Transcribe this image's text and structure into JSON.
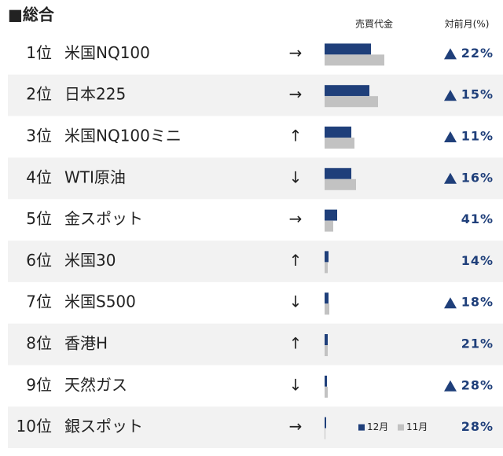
{
  "header": {
    "title": "■総合",
    "col_volume": "売買代金",
    "col_change": "対前月(%)"
  },
  "legend": {
    "dec": "12月",
    "nov": "11月",
    "dec_color": "#1f3f7a",
    "nov_color": "#c2c2c2"
  },
  "rows": [
    {
      "rank": "1位",
      "name": "米国NQ100",
      "trend": "→",
      "dec": 59,
      "nov": 76,
      "change": "22%",
      "up": true
    },
    {
      "rank": "2位",
      "name": "日本225",
      "trend": "→",
      "dec": 57,
      "nov": 68,
      "change": "15%",
      "up": true
    },
    {
      "rank": "3位",
      "name": "米国NQ100ミニ",
      "trend": "↑",
      "dec": 34,
      "nov": 38,
      "change": "11%",
      "up": true
    },
    {
      "rank": "4位",
      "name": "WTI原油",
      "trend": "↓",
      "dec": 34,
      "nov": 40,
      "change": "16%",
      "up": true
    },
    {
      "rank": "5位",
      "name": "金スポット",
      "trend": "→",
      "dec": 16,
      "nov": 11,
      "change": "41%",
      "up": false
    },
    {
      "rank": "6位",
      "name": "米国30",
      "trend": "↑",
      "dec": 5,
      "nov": 4,
      "change": "14%",
      "up": false
    },
    {
      "rank": "7位",
      "name": "米国S500",
      "trend": "↓",
      "dec": 5,
      "nov": 6,
      "change": "18%",
      "up": true
    },
    {
      "rank": "8位",
      "name": "香港H",
      "trend": "↑",
      "dec": 4,
      "nov": 4,
      "change": "21%",
      "up": false
    },
    {
      "rank": "9位",
      "name": "天然ガス",
      "trend": "↓",
      "dec": 3,
      "nov": 4,
      "change": "28%",
      "up": true
    },
    {
      "rank": "10位",
      "name": "銀スポット",
      "trend": "→",
      "dec": 2,
      "nov": 1,
      "change": "28%",
      "up": false
    }
  ]
}
